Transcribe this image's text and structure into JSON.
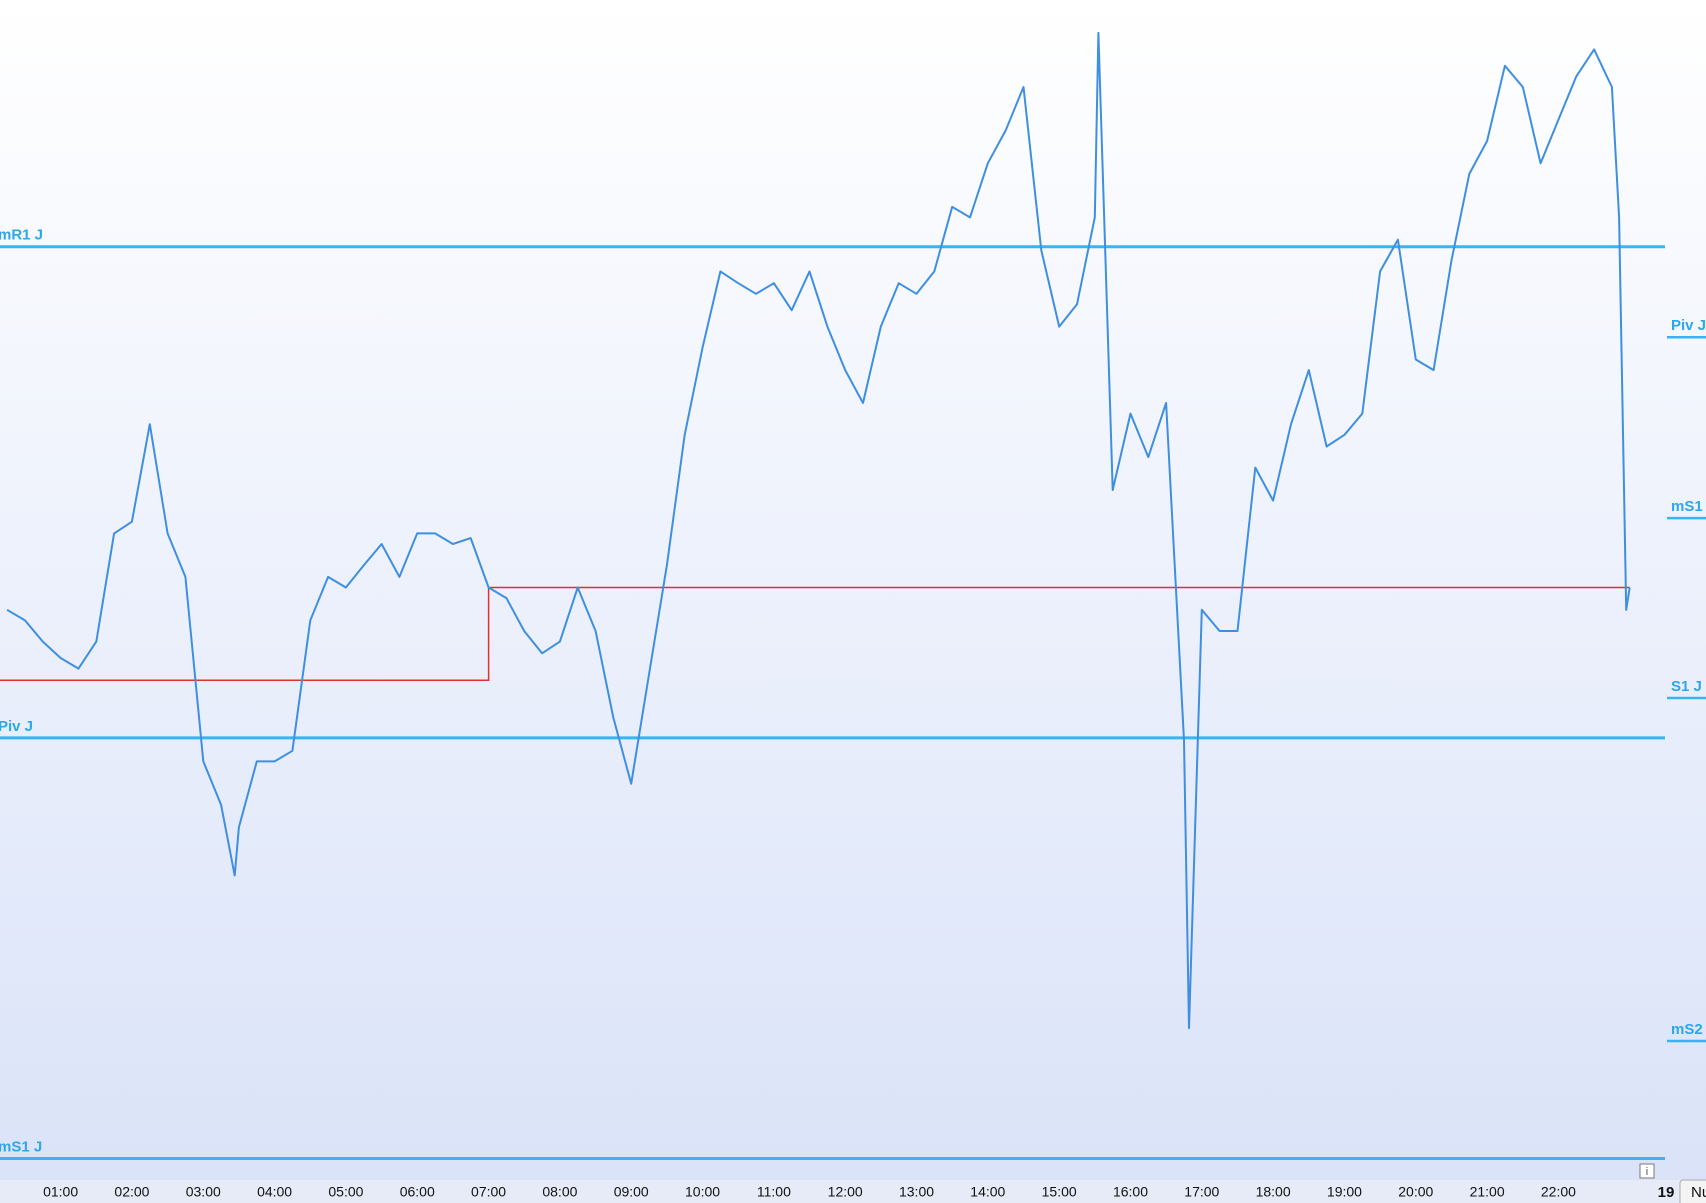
{
  "chart_data": {
    "type": "line",
    "x": [
      0.25,
      0.5,
      0.75,
      1.0,
      1.25,
      1.5,
      1.75,
      2.0,
      2.25,
      2.5,
      2.75,
      3.0,
      3.25,
      3.44,
      3.5,
      3.75,
      4.0,
      4.25,
      4.5,
      4.75,
      5.0,
      5.25,
      5.5,
      5.75,
      6.0,
      6.25,
      6.5,
      6.75,
      7.0,
      7.25,
      7.5,
      7.75,
      8.0,
      8.25,
      8.5,
      8.75,
      9.0,
      9.25,
      9.5,
      9.75,
      10.0,
      10.25,
      10.5,
      10.75,
      11.0,
      11.25,
      11.5,
      11.75,
      12.0,
      12.25,
      12.5,
      12.75,
      13.0,
      13.25,
      13.5,
      13.75,
      14.0,
      14.25,
      14.5,
      14.75,
      15.0,
      15.25,
      15.5,
      15.55,
      15.75,
      16.0,
      16.25,
      16.5,
      16.75,
      16.82,
      17.0,
      17.25,
      17.5,
      17.75,
      18.0,
      18.25,
      18.5,
      18.75,
      19.0,
      19.25,
      19.5,
      19.75,
      20.0,
      20.25,
      20.5,
      20.75,
      21.0,
      21.25,
      21.5,
      21.75,
      22.0,
      22.25,
      22.5,
      22.75,
      22.85,
      22.95,
      23.0
    ],
    "series": [
      {
        "color": "#3f8fe0",
        "values": [
          48.1,
          47.2,
          45.4,
          44.0,
          43.1,
          45.4,
          54.6,
          55.6,
          63.9,
          54.6,
          50.9,
          35.2,
          31.5,
          25.5,
          29.6,
          35.2,
          35.2,
          36.1,
          47.2,
          50.9,
          50.0,
          51.9,
          53.7,
          50.9,
          54.6,
          54.6,
          53.7,
          54.2,
          50.0,
          49.1,
          46.3,
          44.4,
          45.4,
          50.0,
          46.3,
          38.9,
          33.3,
          42.6,
          51.9,
          63.0,
          70.4,
          76.9,
          75.9,
          75.0,
          75.9,
          73.6,
          76.9,
          72.2,
          68.5,
          65.7,
          72.2,
          75.9,
          75.0,
          76.9,
          82.4,
          81.5,
          86.1,
          88.9,
          92.6,
          78.7,
          72.2,
          74.1,
          81.5,
          97.2,
          58.3,
          64.8,
          61.1,
          65.7,
          37.0,
          12.5,
          48.1,
          46.3,
          46.3,
          60.2,
          57.4,
          63.9,
          68.5,
          62.0,
          63.0,
          64.8,
          76.9,
          79.6,
          69.4,
          68.5,
          77.8,
          85.2,
          88.0,
          94.4,
          92.6,
          86.1,
          89.8,
          93.5,
          95.8,
          92.6,
          81.5,
          48.1,
          50.0
        ]
      }
    ],
    "reference_line": {
      "color": "#e03030",
      "x": [
        0.15,
        7.0,
        7.0,
        23.0
      ],
      "values": [
        42.1,
        42.1,
        50.0,
        50.0
      ]
    },
    "levels": [
      {
        "label": "mR1 J",
        "value": 79.0
      },
      {
        "label": "Piv J",
        "value": 37.2
      },
      {
        "label": "mS1 J",
        "value": 1.4
      }
    ],
    "right_levels": [
      {
        "label": "Piv J",
        "value": 71.3
      },
      {
        "label": "mS1",
        "value": 55.9
      },
      {
        "label": "S1 J",
        "value": 40.6
      },
      {
        "label": "mS2",
        "value": 11.4
      }
    ],
    "level_color": "#38b4f0",
    "xlim": [
      0.15,
      23.34
    ],
    "ylim": [
      0,
      100
    ],
    "xticks": [
      {
        "value": 1,
        "label": "01:00"
      },
      {
        "value": 2,
        "label": "02:00"
      },
      {
        "value": 3,
        "label": "03:00"
      },
      {
        "value": 4,
        "label": "04:00"
      },
      {
        "value": 5,
        "label": "05:00"
      },
      {
        "value": 6,
        "label": "06:00"
      },
      {
        "value": 7,
        "label": "07:00"
      },
      {
        "value": 8,
        "label": "08:00"
      },
      {
        "value": 9,
        "label": "09:00"
      },
      {
        "value": 10,
        "label": "10:00"
      },
      {
        "value": 11,
        "label": "11:00"
      },
      {
        "value": 12,
        "label": "12:00"
      },
      {
        "value": 13,
        "label": "13:00"
      },
      {
        "value": 14,
        "label": "14:00"
      },
      {
        "value": 15,
        "label": "15:00"
      },
      {
        "value": 16,
        "label": "16:00"
      },
      {
        "value": 17,
        "label": "17:00"
      },
      {
        "value": 18,
        "label": "18:00"
      },
      {
        "value": 19,
        "label": "19:00"
      },
      {
        "value": 20,
        "label": "20:00"
      },
      {
        "value": 21,
        "label": "21:00"
      },
      {
        "value": 22,
        "label": "22:00"
      }
    ],
    "date_label": "19",
    "button_label": "Nu"
  }
}
